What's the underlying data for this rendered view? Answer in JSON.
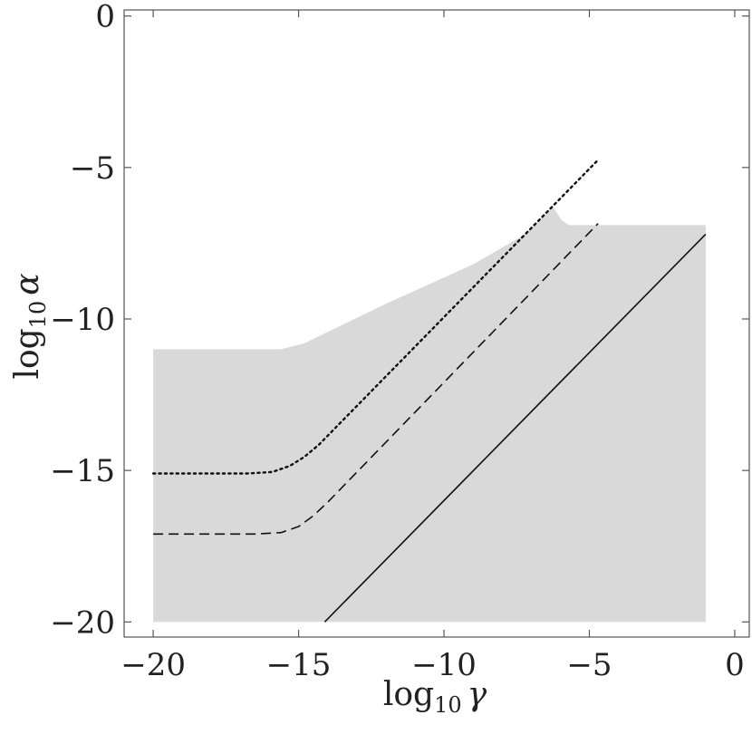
{
  "chart_data": {
    "type": "area",
    "xlabel": {
      "base": "log",
      "subscript": "10",
      "variable": "γ"
    },
    "ylabel": {
      "base": "log",
      "subscript": "10",
      "variable": "α"
    },
    "xlim": [
      -21,
      0.5
    ],
    "ylim": [
      -20.5,
      0.2
    ],
    "xticks": [
      -20,
      -15,
      -10,
      -5,
      0
    ],
    "xtick_labels": [
      "−20",
      "−15",
      "−10",
      "−5",
      "0"
    ],
    "yticks": [
      0,
      -5,
      -10,
      -15,
      -20
    ],
    "ytick_labels": [
      "0",
      "−5",
      "−10",
      "−15",
      "−20"
    ],
    "grid": false,
    "colors": {
      "region": "#d9d9d9",
      "line": "#111111",
      "frame": "#555555"
    },
    "region": {
      "name": "",
      "boundary": [
        [
          -20.0,
          -20.0
        ],
        [
          -20.0,
          -11.0
        ],
        [
          -15.6,
          -11.0
        ],
        [
          -14.8,
          -10.8
        ],
        [
          -12.0,
          -9.5
        ],
        [
          -9.0,
          -8.2
        ],
        [
          -7.2,
          -7.2
        ],
        [
          -6.25,
          -6.3
        ],
        [
          -5.95,
          -6.75
        ],
        [
          -5.7,
          -6.9
        ],
        [
          -1.0,
          -6.9
        ],
        [
          -1.0,
          -20.0
        ]
      ]
    },
    "series": [
      {
        "style": "solid",
        "x": [
          -14.1,
          -1.0
        ],
        "y": [
          -20.0,
          -7.2
        ]
      },
      {
        "style": "dashed",
        "x": [
          -20.0,
          -16.5,
          -15.6,
          -15.0,
          -14.5,
          -14.0,
          -4.7
        ],
        "y": [
          -17.1,
          -17.1,
          -17.05,
          -16.85,
          -16.5,
          -16.05,
          -6.85
        ]
      },
      {
        "style": "dotted",
        "x": [
          -20.0,
          -16.8,
          -15.9,
          -15.3,
          -14.8,
          -14.3,
          -4.7
        ],
        "y": [
          -15.1,
          -15.1,
          -15.05,
          -14.85,
          -14.55,
          -14.15,
          -4.75
        ]
      }
    ]
  }
}
